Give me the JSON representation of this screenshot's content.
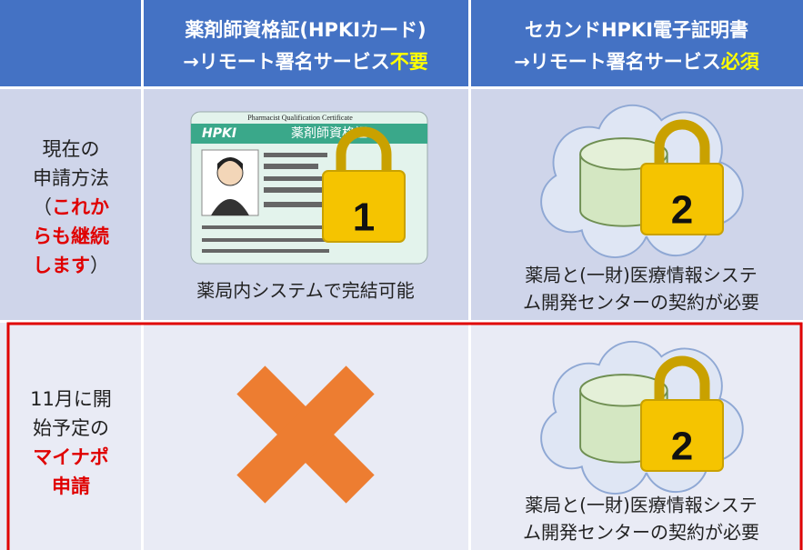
{
  "header": {
    "columns": [
      {
        "line1": "薬剤師資格証(HPKIカード)",
        "line2": "→リモート署名サービス",
        "emphasis": "不要"
      },
      {
        "line1": "セカンドHPKI電子証明書",
        "line2": "→リモート署名サービス",
        "emphasis": "必須"
      }
    ]
  },
  "rows": [
    {
      "label_lines": [
        [
          {
            "text": "現在の",
            "highlight": false
          }
        ],
        [
          {
            "text": "申請方法",
            "highlight": false
          }
        ],
        [
          {
            "text": "（",
            "highlight": false
          },
          {
            "text": "これか",
            "highlight": true
          }
        ],
        [
          {
            "text": "らも継続",
            "highlight": true
          }
        ],
        [
          {
            "text": "します",
            "highlight": true
          },
          {
            "text": "）",
            "highlight": false
          }
        ]
      ],
      "card": {
        "title": "Pharmacist Qualification Certificate",
        "name": "薬剤師資格証",
        "logo": "HPKI",
        "lock_number": "1",
        "caption": "薬局内システムで完結可能"
      },
      "cloud": {
        "lock_number": "2",
        "caption_lines": [
          "薬局と(一財)医療情報システ",
          "ム開発センターの契約が必要"
        ]
      }
    },
    {
      "label_lines": [
        [
          {
            "text": "11月に開",
            "highlight": false
          }
        ],
        [
          {
            "text": "始予定の",
            "highlight": false
          }
        ],
        [
          {
            "text": "マイナポ",
            "highlight": true
          }
        ],
        [
          {
            "text": "申請",
            "highlight": true
          }
        ]
      ],
      "cloud": {
        "lock_number": "2",
        "caption_lines": [
          "薬局と(一財)医療情報システ",
          "ム開発センターの契約が必要"
        ]
      }
    }
  ]
}
